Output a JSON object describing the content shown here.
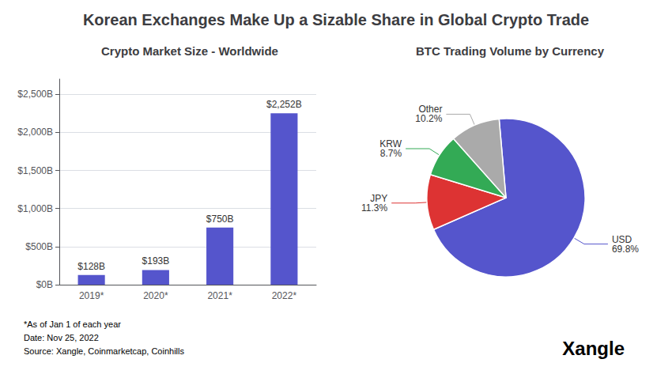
{
  "title": "Korean Exchanges Make Up a Sizable Share in Global Crypto Trade",
  "annotations": [
    "*As of Jan 1 of each year",
    "Date: Nov 25, 2022",
    "Source: Xangle, Coinmarketcap, Coinhills",
    "Xangle"
  ],
  "chart_data": [
    {
      "type": "bar",
      "title": "Crypto Market Size - Worldwide",
      "categories": [
        "2019*",
        "2020*",
        "2021*",
        "2022*"
      ],
      "values": [
        128,
        193,
        750,
        2252
      ],
      "value_labels": [
        "$128B",
        "$193B",
        "$750B",
        "$2,252B"
      ],
      "data_labels": true,
      "color": "#5555cc",
      "ylim": [
        0,
        2700
      ],
      "yticks": [
        {
          "value": 0,
          "label": "$0B"
        },
        {
          "value": 500,
          "label": "$500B"
        },
        {
          "value": 1000,
          "label": "$1,000B"
        },
        {
          "value": 1500,
          "label": "$1,500B"
        },
        {
          "value": 2000,
          "label": "$2,000B"
        },
        {
          "value": 2500,
          "label": "$2,500B"
        }
      ],
      "grid": true
    },
    {
      "type": "pie",
      "title": "BTC Trading Volume by Currency",
      "categories": [
        "USD",
        "JPY",
        "KRW",
        "Other"
      ],
      "values": [
        69.8,
        11.3,
        8.7,
        10.2
      ],
      "value_labels": [
        "69.8%",
        "11.3%",
        "8.7%",
        "10.2%"
      ],
      "data_labels": true,
      "colors": [
        "#5555cc",
        "#dd3333",
        "#33aa55",
        "#aaaaaa"
      ]
    }
  ]
}
